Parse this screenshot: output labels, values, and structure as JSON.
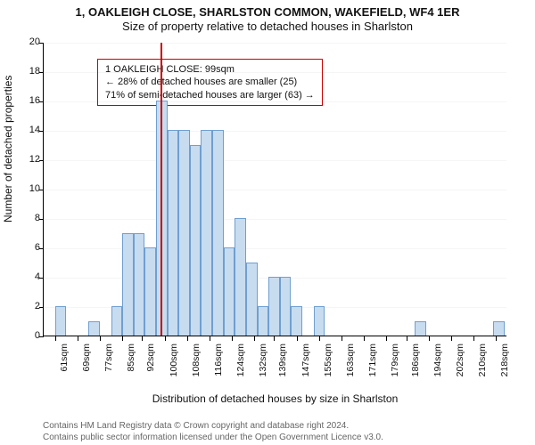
{
  "title_line1": "1, OAKLEIGH CLOSE, SHARLSTON COMMON, WAKEFIELD, WF4 1ER",
  "title_line2": "Size of property relative to detached houses in Sharlston",
  "ylabel": "Number of detached properties",
  "xlabel": "Distribution of detached houses by size in Sharlston",
  "info_box": {
    "line1": "1 OAKLEIGH CLOSE: 99sqm",
    "line2": "← 28% of detached houses are smaller (25)",
    "line3": "71% of semi-detached houses are larger (63) →"
  },
  "attribution": {
    "line1": "Contains HM Land Registry data © Crown copyright and database right 2024.",
    "line2": "Contains public sector information licensed under the Open Government Licence v3.0."
  },
  "chart": {
    "type": "histogram",
    "ylim": [
      0,
      20
    ],
    "ytick_step": 2,
    "xlim_start": 57,
    "xlim_end": 222,
    "bin_width": 4,
    "xticks": [
      61,
      69,
      77,
      85,
      92,
      100,
      108,
      116,
      124,
      132,
      139,
      147,
      155,
      163,
      171,
      179,
      186,
      194,
      202,
      210,
      218
    ],
    "xtick_suffix": "sqm",
    "bar_color": "#c8dcf0",
    "bar_border": "#6f9fd0",
    "ref_value": 99,
    "ref_color": "#cc0000",
    "bars": [
      {
        "x": 61,
        "h": 2
      },
      {
        "x": 73,
        "h": 1
      },
      {
        "x": 81,
        "h": 2
      },
      {
        "x": 85,
        "h": 7
      },
      {
        "x": 89,
        "h": 7
      },
      {
        "x": 93,
        "h": 6
      },
      {
        "x": 97,
        "h": 16
      },
      {
        "x": 101,
        "h": 14
      },
      {
        "x": 105,
        "h": 14
      },
      {
        "x": 109,
        "h": 13
      },
      {
        "x": 113,
        "h": 14
      },
      {
        "x": 117,
        "h": 14
      },
      {
        "x": 121,
        "h": 6
      },
      {
        "x": 125,
        "h": 8
      },
      {
        "x": 129,
        "h": 5
      },
      {
        "x": 133,
        "h": 2
      },
      {
        "x": 137,
        "h": 4
      },
      {
        "x": 141,
        "h": 4
      },
      {
        "x": 145,
        "h": 2
      },
      {
        "x": 153,
        "h": 2
      },
      {
        "x": 189,
        "h": 1
      },
      {
        "x": 217,
        "h": 1
      }
    ]
  }
}
